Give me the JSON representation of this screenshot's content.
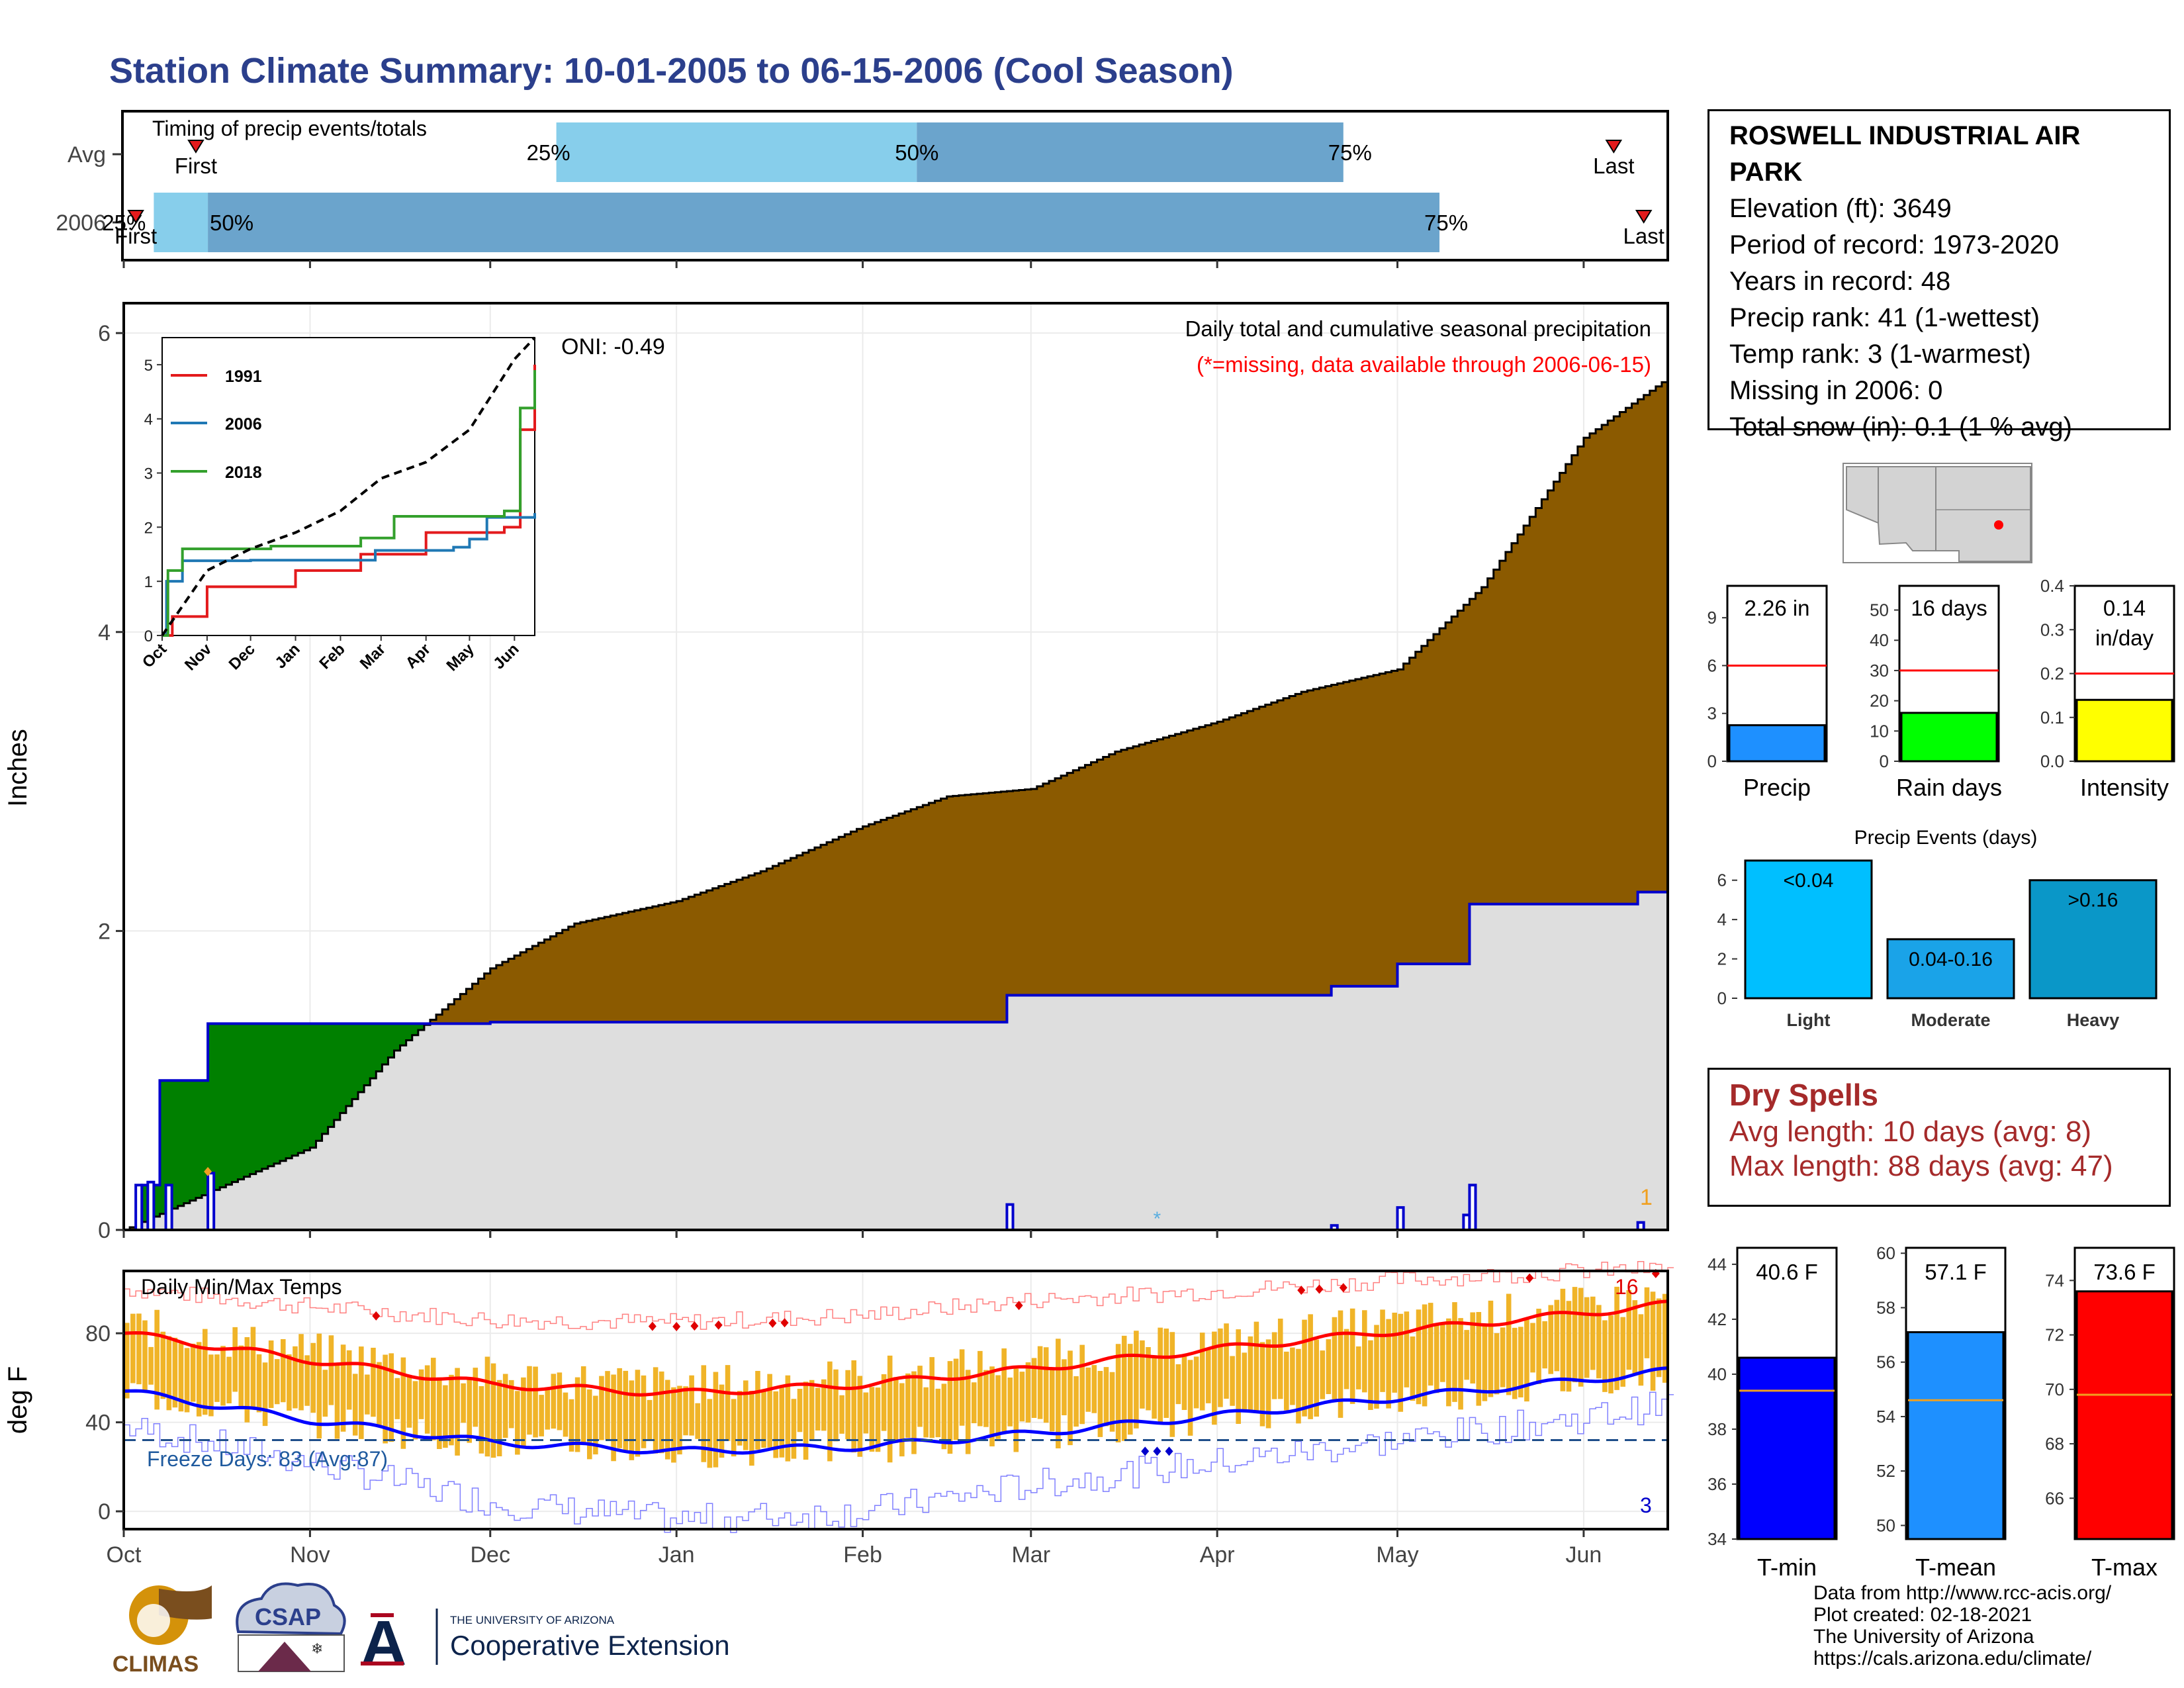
{
  "title": "Station Climate Summary: 10-01-2005 to 06-15-2006 (Cool Season)",
  "colors": {
    "title": "#2b3f8c",
    "cumulative_2006_fill": "#8b5a00",
    "avg_fill": "#dedede",
    "deficit_fill": "#008000",
    "line_blue": "#0000cd",
    "temp_bar": "#f0b428",
    "tmax_line": "#ff0000",
    "tmin_line": "#0000ff",
    "light_blue": "#87ceeb",
    "mid_blue": "#6ba4cc"
  },
  "timing_panel": {
    "label": "Timing of precip events/totals",
    "rows": [
      "Avg",
      "2006"
    ],
    "first_label": "First",
    "last_label": "Last",
    "avg": {
      "p25": "25%",
      "p50": "50%",
      "p75": "75%"
    },
    "y2006": {
      "p25": "25%",
      "p50": "50%",
      "p75": "75%"
    }
  },
  "station": {
    "name": "ROSWELL INDUSTRIAL AIR PARK",
    "elevation": "Elevation (ft): 3649",
    "period": "Period of record: 1973-2020",
    "years": "Years in record: 48",
    "precip_rank": "Precip rank: 41 (1-wettest)",
    "temp_rank": "Temp rank: 3 (1-warmest)",
    "missing": "Missing in 2006: 0",
    "snow": "Total snow (in): 0.1 (1 % avg)"
  },
  "main_panel": {
    "ylabel": "Inches",
    "oni": "ONI: -0.49",
    "desc": "Daily total and cumulative seasonal precipitation",
    "missing_note": "(*=missing, data available through 2006-06-15)",
    "right_count": "1",
    "y_ticks": [
      "0",
      "2",
      "4",
      "6"
    ],
    "months": [
      "Oct",
      "Nov",
      "Dec",
      "Jan",
      "Feb",
      "Mar",
      "Apr",
      "May",
      "Jun"
    ]
  },
  "inset": {
    "legend": [
      "1991",
      "2006",
      "2018"
    ],
    "y_ticks": [
      "0",
      "1",
      "2",
      "3",
      "4",
      "5"
    ],
    "months": [
      "Oct",
      "Nov",
      "Dec",
      "Jan",
      "Feb",
      "Mar",
      "Apr",
      "May",
      "Jun"
    ]
  },
  "temp_panel": {
    "ylabel": "deg F",
    "label": "Daily Min/Max Temps",
    "freeze": "Freeze Days: 83 (Avg:87)",
    "hot_count": "16",
    "cold_count": "3",
    "y_ticks": [
      "0",
      "40",
      "80"
    ],
    "months": [
      "Oct",
      "Nov",
      "Dec",
      "Jan",
      "Feb",
      "Mar",
      "Apr",
      "May",
      "Jun"
    ]
  },
  "mini_bars": [
    {
      "label": "Precip",
      "value_text": "2.26 in",
      "ticks": [
        "0",
        "3",
        "6",
        "9"
      ]
    },
    {
      "label": "Rain days",
      "value_text": "16 days",
      "ticks": [
        "0",
        "10",
        "20",
        "30",
        "40",
        "50"
      ]
    },
    {
      "label": "Intensity",
      "value_text": "0.14",
      "value_text2": "in/day",
      "ticks": [
        "0.0",
        "0.1",
        "0.2",
        "0.3",
        "0.4"
      ]
    }
  ],
  "events": {
    "title": "Precip Events (days)",
    "ticks": [
      "0",
      "2",
      "4",
      "6"
    ]
  },
  "dry_spells": {
    "title": "Dry Spells",
    "avg": "Avg length: 10 days (avg: 8)",
    "max": "Max length: 88 days (avg: 47)"
  },
  "temp_bars": [
    {
      "label": "T-min",
      "value_text": "40.6 F",
      "ticks": [
        "34",
        "36",
        "38",
        "40",
        "42",
        "44"
      ]
    },
    {
      "label": "T-mean",
      "value_text": "57.1 F",
      "ticks": [
        "50",
        "52",
        "54",
        "56",
        "58",
        "60"
      ]
    },
    {
      "label": "T-max",
      "value_text": "73.6 F",
      "ticks": [
        "66",
        "68",
        "70",
        "72",
        "74"
      ]
    }
  ],
  "credits": {
    "line1": "Data from http://www.rcc-acis.org/",
    "line2": "Plot created: 02-18-2021",
    "line3": "The University of Arizona",
    "line4": "https://cals.arizona.edu/climate/"
  },
  "logos": {
    "climas": "CLIMAS",
    "csap": "CSAP",
    "ua_small": "THE UNIVERSITY OF ARIZONA",
    "ua_big": "Cooperative Extension"
  },
  "chart_data": [
    {
      "type": "bar",
      "name": "timing",
      "categories": [
        "Avg",
        "2006"
      ],
      "series": [
        {
          "name": "Avg",
          "first": "2005-10-13",
          "p25": "2005-12-12",
          "p50": "2006-02-10",
          "p75": "2006-04-22",
          "last": "2006-06-06"
        },
        {
          "name": "2006",
          "first": "2005-10-03",
          "p25": "2005-10-06",
          "p50": "2005-10-15",
          "p75": "2006-05-08",
          "last": "2006-06-11"
        }
      ]
    },
    {
      "type": "area",
      "name": "cumulative_precip",
      "ylabel": "Inches",
      "ylim": [
        0,
        6.2
      ],
      "xrange": [
        "2005-10-01",
        "2006-06-15"
      ],
      "series": [
        {
          "name": "Avg cumulative",
          "x": [
            "2005-10-01",
            "2005-10-15",
            "2005-11-01",
            "2005-11-15",
            "2005-12-01",
            "2005-12-15",
            "2006-01-01",
            "2006-01-15",
            "2006-02-01",
            "2006-02-15",
            "2006-03-01",
            "2006-03-15",
            "2006-04-01",
            "2006-04-15",
            "2006-05-01",
            "2006-05-15",
            "2006-06-01",
            "2006-06-15"
          ],
          "y": [
            0,
            0.25,
            0.55,
            1.2,
            1.75,
            2.05,
            2.2,
            2.4,
            2.7,
            2.9,
            2.95,
            3.2,
            3.4,
            3.6,
            3.75,
            4.3,
            5.3,
            5.7
          ]
        },
        {
          "name": "2006 cumulative",
          "x": [
            "2005-10-01",
            "2005-10-04",
            "2005-10-07",
            "2005-10-15",
            "2005-12-01",
            "2006-02-25",
            "2006-04-20",
            "2006-05-01",
            "2006-05-13",
            "2006-06-10",
            "2006-06-15"
          ],
          "y": [
            0,
            0.3,
            1.0,
            1.38,
            1.39,
            1.57,
            1.63,
            1.78,
            2.18,
            2.26,
            2.26
          ]
        },
        {
          "name": "2006 daily",
          "x": [
            "2005-10-03",
            "2005-10-05",
            "2005-10-08",
            "2005-10-15",
            "2006-02-25",
            "2006-04-20",
            "2006-05-01",
            "2006-05-12",
            "2006-05-13",
            "2006-06-10"
          ],
          "y": [
            0.3,
            0.32,
            0.3,
            0.38,
            0.17,
            0.03,
            0.15,
            0.1,
            0.3,
            0.05
          ]
        }
      ]
    },
    {
      "type": "line",
      "name": "inset_years",
      "ylim": [
        0,
        5.5
      ],
      "series": [
        {
          "name": "1991",
          "x": [
            "10-01",
            "10-08",
            "11-01",
            "01-01",
            "02-15",
            "04-01",
            "05-25",
            "06-05",
            "06-15"
          ],
          "y": [
            0,
            0.35,
            0.9,
            1.2,
            1.5,
            1.9,
            2.0,
            3.8,
            5.0
          ]
        },
        {
          "name": "2006",
          "x": [
            "10-01",
            "10-04",
            "10-15",
            "12-01",
            "02-25",
            "04-20",
            "05-01",
            "05-13",
            "06-15"
          ],
          "y": [
            0,
            1.0,
            1.38,
            1.39,
            1.57,
            1.63,
            1.78,
            2.18,
            2.26
          ]
        },
        {
          "name": "2018",
          "x": [
            "10-01",
            "10-05",
            "10-15",
            "12-15",
            "02-15",
            "03-10",
            "05-25",
            "06-05",
            "06-15"
          ],
          "y": [
            0,
            1.2,
            1.6,
            1.65,
            1.8,
            2.2,
            2.3,
            4.2,
            4.9
          ]
        },
        {
          "name": "avg",
          "x": [
            "10-01",
            "11-01",
            "12-01",
            "01-01",
            "02-01",
            "03-01",
            "04-01",
            "05-01",
            "06-01",
            "06-15"
          ],
          "y": [
            0,
            1.2,
            1.6,
            1.9,
            2.3,
            2.9,
            3.2,
            3.8,
            5.1,
            5.5
          ]
        }
      ]
    },
    {
      "type": "line",
      "name": "daily_temps",
      "ylabel": "deg F",
      "ylim": [
        -8,
        108
      ],
      "freeze_line": 32,
      "series": [
        {
          "name": "avg tmax",
          "x": [
            "10-01",
            "11-01",
            "12-01",
            "01-01",
            "02-01",
            "03-01",
            "04-01",
            "05-01",
            "06-01",
            "06-15"
          ],
          "y": [
            80,
            68,
            57,
            53,
            57,
            64,
            73,
            81,
            89,
            93
          ]
        },
        {
          "name": "avg tmin",
          "x": [
            "10-01",
            "11-01",
            "12-01",
            "01-01",
            "02-01",
            "03-01",
            "04-01",
            "05-01",
            "06-01",
            "06-15"
          ],
          "y": [
            54,
            41,
            31,
            27,
            29,
            35,
            43,
            51,
            59,
            63
          ]
        },
        {
          "name": "record max",
          "x": [
            "10-01",
            "11-01",
            "12-01",
            "01-01",
            "02-01",
            "03-01",
            "04-01",
            "05-01",
            "06-01",
            "06-15"
          ],
          "y": [
            100,
            92,
            86,
            85,
            88,
            95,
            99,
            104,
            108,
            109
          ]
        },
        {
          "name": "record min",
          "x": [
            "10-01",
            "11-01",
            "12-01",
            "01-01",
            "02-01",
            "03-01",
            "04-01",
            "05-01",
            "06-01",
            "06-15"
          ],
          "y": [
            38,
            22,
            4,
            -4,
            0,
            12,
            22,
            32,
            42,
            48
          ]
        }
      ]
    },
    {
      "type": "bar",
      "name": "precip_total",
      "categories": [
        "Precip"
      ],
      "values": [
        2.26
      ],
      "average": 6,
      "ylim": [
        0,
        11
      ]
    },
    {
      "type": "bar",
      "name": "rain_days",
      "categories": [
        "Rain days"
      ],
      "values": [
        16
      ],
      "average": 30,
      "ylim": [
        0,
        58
      ]
    },
    {
      "type": "bar",
      "name": "intensity",
      "categories": [
        "Intensity"
      ],
      "values": [
        0.14
      ],
      "average": 0.2,
      "ylim": [
        0,
        0.4
      ]
    },
    {
      "type": "bar",
      "name": "precip_events",
      "categories": [
        "Light",
        "Moderate",
        "Heavy"
      ],
      "bar_labels": [
        "<0.04",
        "0.04-0.16",
        ">0.16"
      ],
      "values": [
        7,
        3,
        6
      ],
      "ylim": [
        0,
        7
      ]
    },
    {
      "type": "bar",
      "name": "tmin",
      "categories": [
        "T-min"
      ],
      "values": [
        40.6
      ],
      "average": 39.4,
      "ylim": [
        34,
        44.6
      ]
    },
    {
      "type": "bar",
      "name": "tmean",
      "categories": [
        "T-mean"
      ],
      "values": [
        57.1
      ],
      "average": 54.6,
      "ylim": [
        49.5,
        60.2
      ]
    },
    {
      "type": "bar",
      "name": "tmax",
      "categories": [
        "T-max"
      ],
      "values": [
        73.6
      ],
      "average": 69.8,
      "ylim": [
        64.5,
        75.2
      ]
    }
  ]
}
